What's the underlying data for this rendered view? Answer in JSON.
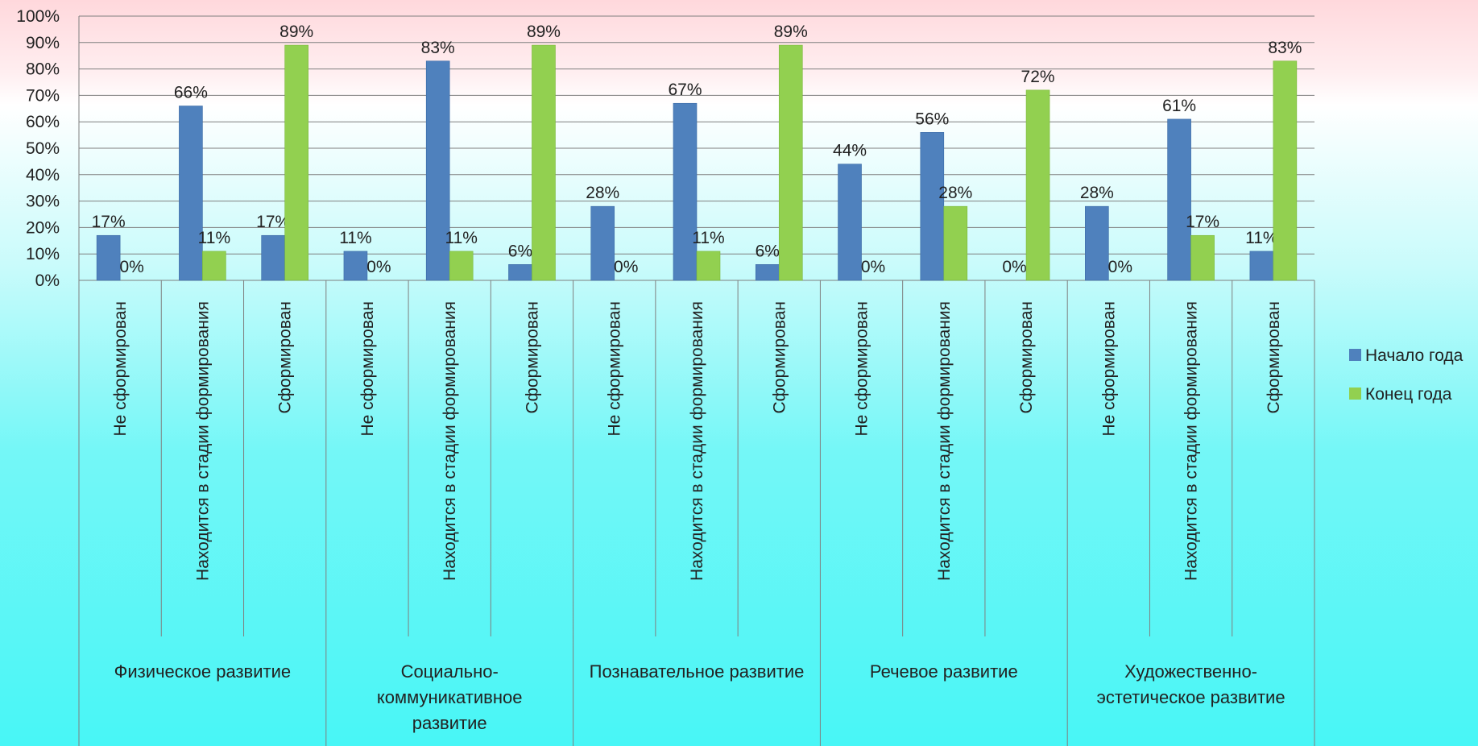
{
  "chart_data": {
    "type": "bar",
    "ylim": [
      0,
      100
    ],
    "yticks": [
      "0%",
      "10%",
      "20%",
      "30%",
      "40%",
      "50%",
      "60%",
      "70%",
      "80%",
      "90%",
      "100%"
    ],
    "grid": true,
    "legend_position": "right",
    "groups": [
      {
        "name": "Физическое развитие",
        "lines": [
          "Физическое развитие"
        ]
      },
      {
        "name": "Социально-коммуникативное развитие",
        "lines": [
          "Социально-",
          "коммуникативное",
          "развитие"
        ]
      },
      {
        "name": "Познавательное развитие",
        "lines": [
          "Познавательное развитие"
        ]
      },
      {
        "name": "Речевое развитие",
        "lines": [
          "Речевое развитие"
        ]
      },
      {
        "name": "Художественно-эстетическое развитие",
        "lines": [
          "Художественно-",
          "эстетическое развитие"
        ]
      }
    ],
    "categories": [
      "Не сформирован",
      "Находится в стадии формирования",
      "Сформирован",
      "Не сформирован",
      "Находится в стадии формирования",
      "Сформирован",
      "Не сформирован",
      "Находится в стадии формирования",
      "Сформирован",
      "Не сформирован",
      "Находится в стадии формирования",
      "Сформирован",
      "Не сформирован",
      "Находится в стадии формирования",
      "Сформирован"
    ],
    "series": [
      {
        "name": "Начало года",
        "color": "#4f81bd",
        "values": [
          17,
          66,
          17,
          11,
          83,
          6,
          28,
          67,
          6,
          44,
          56,
          0,
          28,
          61,
          11
        ],
        "labels": [
          "17%",
          "66%",
          "17%",
          "11%",
          "83%",
          "6%",
          "28%",
          "67%",
          "6%",
          "44%",
          "56%",
          "0%",
          "28%",
          "61%",
          "11%"
        ]
      },
      {
        "name": "Конец года",
        "color": "#92d050",
        "values": [
          0,
          11,
          89,
          0,
          11,
          89,
          0,
          11,
          89,
          0,
          28,
          72,
          0,
          17,
          83
        ],
        "labels": [
          "0%",
          "11%",
          "89%",
          "0%",
          "11%",
          "89%",
          "0%",
          "11%",
          "89%",
          "0%",
          "28%",
          "72%",
          "0%",
          "17%",
          "83%"
        ]
      }
    ]
  }
}
